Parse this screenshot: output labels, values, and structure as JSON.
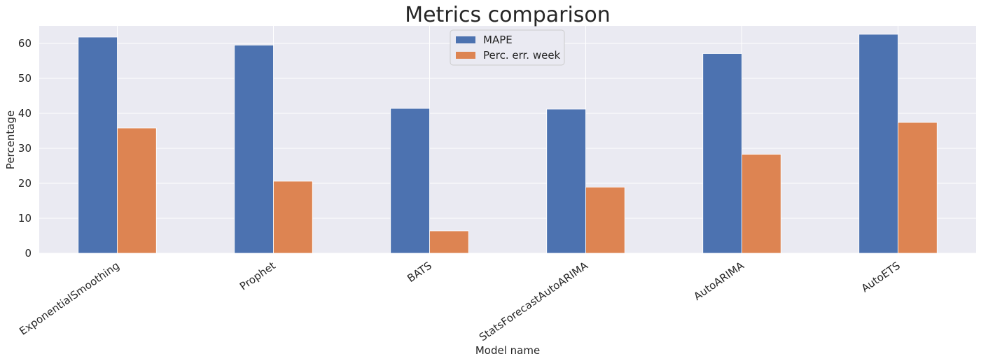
{
  "chart_data": {
    "type": "bar",
    "title": "Metrics comparison",
    "xlabel": "Model name",
    "ylabel": "Percentage",
    "categories": [
      "ExponentialSmoothing",
      "Prophet",
      "BATS",
      "StatsForecastAutoARIMA",
      "AutoARIMA",
      "AutoETS"
    ],
    "series": [
      {
        "name": "MAPE",
        "color": "#4c72b0",
        "values": [
          61.8,
          59.5,
          41.4,
          41.2,
          57.1,
          62.6
        ]
      },
      {
        "name": "Perc. err. week",
        "color": "#dd8452",
        "values": [
          35.8,
          20.6,
          6.4,
          18.9,
          28.3,
          37.4
        ]
      }
    ],
    "ylim": [
      0,
      65
    ],
    "yticks": [
      0,
      10,
      20,
      30,
      40,
      50,
      60
    ],
    "grid": true,
    "legend_position": "top-center",
    "background_color": "#eaeaf2"
  }
}
